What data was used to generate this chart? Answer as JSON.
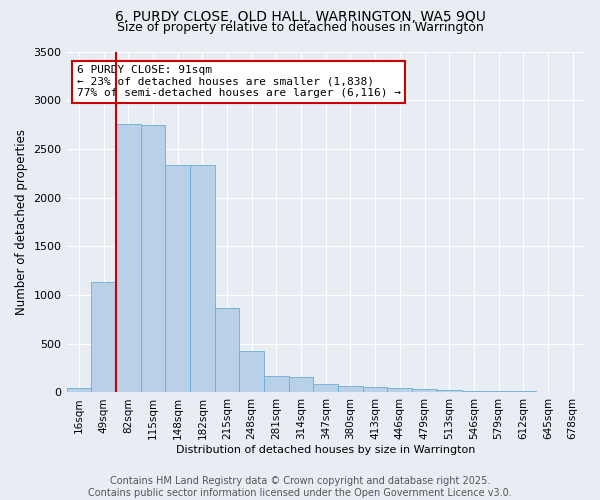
{
  "title": "6, PURDY CLOSE, OLD HALL, WARRINGTON, WA5 9QU",
  "subtitle": "Size of property relative to detached houses in Warrington",
  "xlabel": "Distribution of detached houses by size in Warrington",
  "ylabel": "Number of detached properties",
  "categories": [
    "16sqm",
    "49sqm",
    "82sqm",
    "115sqm",
    "148sqm",
    "182sqm",
    "215sqm",
    "248sqm",
    "281sqm",
    "314sqm",
    "347sqm",
    "380sqm",
    "413sqm",
    "446sqm",
    "479sqm",
    "513sqm",
    "546sqm",
    "579sqm",
    "612sqm",
    "645sqm",
    "678sqm"
  ],
  "values": [
    50,
    1130,
    2760,
    2750,
    2340,
    2330,
    870,
    430,
    170,
    160,
    90,
    65,
    55,
    50,
    35,
    30,
    20,
    15,
    10,
    8,
    5
  ],
  "bar_color": "#b8d0e8",
  "bar_edge_color": "#6aaed6",
  "background_color": "#e8edf4",
  "grid_color": "#ffffff",
  "property_line_x": 2,
  "property_label": "6 PURDY CLOSE: 91sqm",
  "annotation_line1": "← 23% of detached houses are smaller (1,838)",
  "annotation_line2": "77% of semi-detached houses are larger (6,116) →",
  "annotation_box_color": "#ffffff",
  "annotation_box_edge_color": "#cc0000",
  "vline_color": "#cc0000",
  "ylim": [
    0,
    3500
  ],
  "yticks": [
    0,
    500,
    1000,
    1500,
    2000,
    2500,
    3000,
    3500
  ],
  "footer_line1": "Contains HM Land Registry data © Crown copyright and database right 2025.",
  "footer_line2": "Contains public sector information licensed under the Open Government Licence v3.0.",
  "title_fontsize": 10,
  "subtitle_fontsize": 9,
  "footer_fontsize": 7,
  "annot_fontsize": 8,
  "axis_fontsize": 8,
  "tick_fontsize": 7.5,
  "ylabel_fontsize": 8.5
}
